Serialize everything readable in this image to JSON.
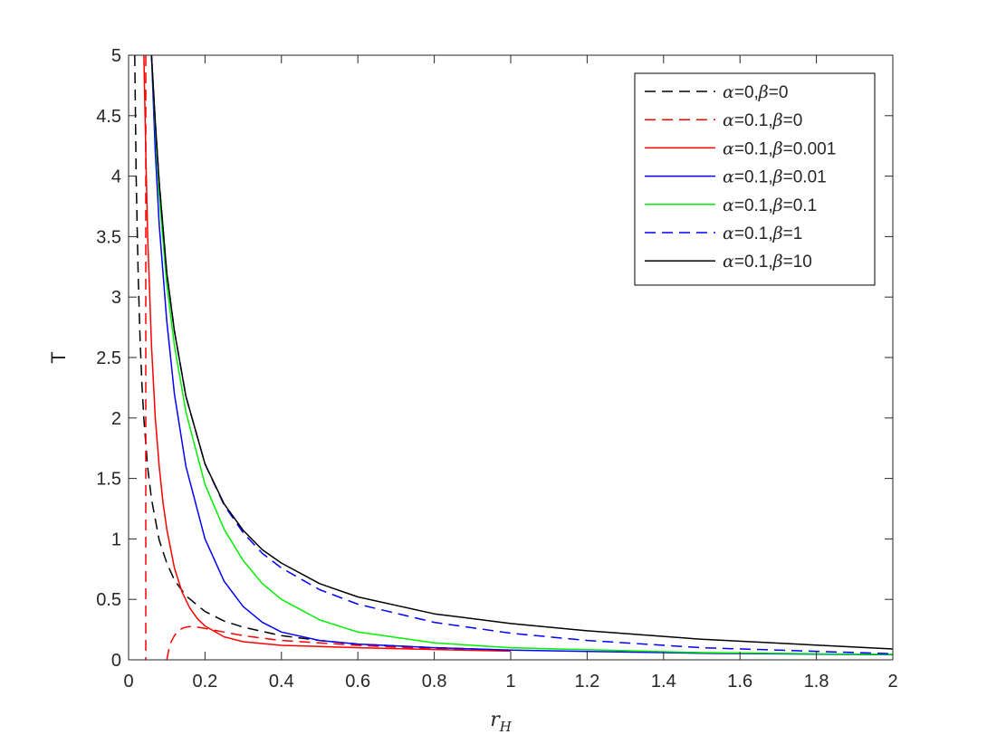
{
  "chart_data": {
    "type": "line",
    "title": "",
    "xlabel": "r_H",
    "xlabel_main": "r",
    "xlabel_sub": "H",
    "ylabel": "T",
    "xlim": [
      0,
      2
    ],
    "ylim": [
      0,
      5
    ],
    "xticks": [
      0,
      0.2,
      0.4,
      0.6,
      0.8,
      1,
      1.2,
      1.4,
      1.6,
      1.8,
      2
    ],
    "xtick_labels": [
      "0",
      "0.2",
      "0.4",
      "0.6",
      "0.8",
      "1",
      "1.2",
      "1.4",
      "1.6",
      "1.8",
      "2"
    ],
    "yticks": [
      0,
      0.5,
      1,
      1.5,
      2,
      2.5,
      3,
      3.5,
      4,
      4.5,
      5
    ],
    "ytick_labels": [
      "0",
      "0.5",
      "1",
      "1.5",
      "2",
      "2.5",
      "3",
      "3.5",
      "4",
      "4.5",
      "5"
    ],
    "grid": false,
    "legend_position": "top-right",
    "series": [
      {
        "name": "α=0,β=0",
        "legend": {
          "alpha": "0",
          "beta": "0"
        },
        "color": "#000000",
        "dash": "dashed",
        "x": [
          0.016,
          0.02,
          0.025,
          0.03,
          0.035,
          0.04,
          0.05,
          0.06,
          0.08,
          0.1,
          0.12,
          0.15,
          0.2,
          0.25,
          0.3,
          0.4,
          0.5,
          0.6,
          0.8,
          1.0
        ],
        "y": [
          5.0,
          3.98,
          3.18,
          2.65,
          2.27,
          1.99,
          1.59,
          1.33,
          0.99,
          0.8,
          0.66,
          0.53,
          0.4,
          0.32,
          0.27,
          0.2,
          0.16,
          0.13,
          0.1,
          0.08
        ]
      },
      {
        "name": "α=0.1,β=0",
        "legend": {
          "alpha": "0.1",
          "beta": "0"
        },
        "color": "#ff0000",
        "dash": "dashed",
        "segments": [
          {
            "x": [
              0.045,
              0.045
            ],
            "y": [
              5.0,
              0.0
            ]
          },
          {
            "x": [
              0.1,
              0.105,
              0.11,
              0.12,
              0.13,
              0.14,
              0.15,
              0.16,
              0.17,
              0.18,
              0.2,
              0.25,
              0.3,
              0.4,
              0.5,
              0.6,
              0.8,
              1.0
            ],
            "y": [
              0.0,
              0.08,
              0.14,
              0.2,
              0.24,
              0.26,
              0.27,
              0.275,
              0.275,
              0.27,
              0.26,
              0.23,
              0.2,
              0.16,
              0.14,
              0.12,
              0.09,
              0.075
            ]
          }
        ]
      },
      {
        "name": "α=0.1,β=0.001",
        "legend": {
          "alpha": "0.1",
          "beta": "0.001"
        },
        "color": "#ff0000",
        "dash": "solid",
        "x": [
          0.04,
          0.045,
          0.05,
          0.06,
          0.07,
          0.08,
          0.09,
          0.1,
          0.12,
          0.14,
          0.16,
          0.18,
          0.2,
          0.25,
          0.3,
          0.4,
          0.5,
          0.6,
          0.8,
          1.0
        ],
        "y": [
          5.0,
          4.2,
          3.5,
          2.6,
          2.0,
          1.6,
          1.3,
          1.08,
          0.76,
          0.56,
          0.43,
          0.34,
          0.28,
          0.19,
          0.15,
          0.12,
          0.11,
          0.1,
          0.085,
          0.072
        ]
      },
      {
        "name": "α=0.1,β=0.01",
        "legend": {
          "alpha": "0.1",
          "beta": "0.01"
        },
        "color": "#0000ff",
        "dash": "solid",
        "x": [
          0.06,
          0.07,
          0.08,
          0.1,
          0.12,
          0.15,
          0.2,
          0.25,
          0.3,
          0.35,
          0.4,
          0.5,
          0.6,
          0.8,
          1.0,
          1.5,
          2.0
        ],
        "y": [
          5.0,
          4.2,
          3.6,
          2.8,
          2.2,
          1.6,
          1.0,
          0.65,
          0.44,
          0.31,
          0.23,
          0.16,
          0.13,
          0.1,
          0.08,
          0.055,
          0.042
        ]
      },
      {
        "name": "α=0.1,β=0.1",
        "legend": {
          "alpha": "0.1",
          "beta": "0.1"
        },
        "color": "#00ee00",
        "dash": "solid",
        "x": [
          0.06,
          0.07,
          0.08,
          0.1,
          0.12,
          0.15,
          0.2,
          0.25,
          0.3,
          0.35,
          0.4,
          0.5,
          0.6,
          0.8,
          1.0,
          1.5,
          2.0
        ],
        "y": [
          5.0,
          4.4,
          3.85,
          3.1,
          2.6,
          2.05,
          1.45,
          1.08,
          0.82,
          0.63,
          0.5,
          0.33,
          0.23,
          0.14,
          0.1,
          0.06,
          0.045
        ]
      },
      {
        "name": "α=0.1,β=1",
        "legend": {
          "alpha": "0.1",
          "beta": "1"
        },
        "color": "#0000ff",
        "dash": "dashed",
        "x": [
          0.06,
          0.07,
          0.08,
          0.1,
          0.12,
          0.15,
          0.2,
          0.25,
          0.3,
          0.35,
          0.4,
          0.5,
          0.6,
          0.8,
          1.0,
          1.2,
          1.5,
          2.0
        ],
        "y": [
          5.0,
          4.45,
          3.95,
          3.2,
          2.72,
          2.18,
          1.62,
          1.28,
          1.05,
          0.88,
          0.76,
          0.58,
          0.46,
          0.31,
          0.22,
          0.16,
          0.1,
          0.05
        ]
      },
      {
        "name": "α=0.1,β=10",
        "legend": {
          "alpha": "0.1",
          "beta": "10"
        },
        "color": "#000000",
        "dash": "solid",
        "x": [
          0.06,
          0.07,
          0.08,
          0.1,
          0.12,
          0.15,
          0.2,
          0.25,
          0.3,
          0.35,
          0.4,
          0.5,
          0.6,
          0.8,
          1.0,
          1.2,
          1.5,
          2.0
        ],
        "y": [
          5.0,
          4.45,
          3.95,
          3.2,
          2.72,
          2.18,
          1.62,
          1.29,
          1.07,
          0.91,
          0.8,
          0.63,
          0.52,
          0.38,
          0.3,
          0.24,
          0.17,
          0.09
        ]
      }
    ]
  }
}
